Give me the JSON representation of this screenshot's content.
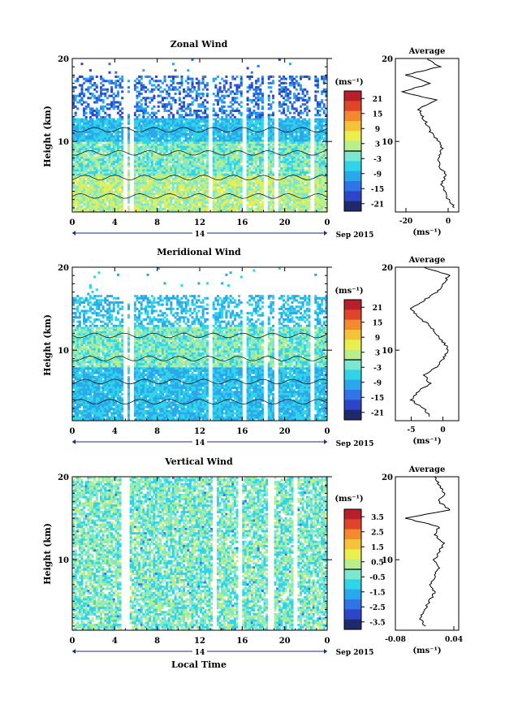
{
  "figure": {
    "xlabel": "Local Time",
    "units_label": "(ms⁻¹)"
  },
  "colormap": [
    "#1f2a6e",
    "#2c46c7",
    "#2f74e8",
    "#2aa8ec",
    "#31d3e8",
    "#7ae8d0",
    "#b8ef8c",
    "#e8ef4e",
    "#f6c23a",
    "#f38a2d",
    "#e0452a",
    "#b81f2a"
  ],
  "chart_data": [
    {
      "type": "heatmap",
      "id": "zonal",
      "title": "Zonal Wind",
      "ylabel": "Height (km)",
      "x_ticks": [
        "0",
        "4",
        "8",
        "12",
        "16",
        "20",
        "0"
      ],
      "date_label": "14",
      "date_suffix": "Sep 2015",
      "y_range": [
        1.5,
        20
      ],
      "y_ticks": [
        10,
        20
      ],
      "colorbar": {
        "units": "(ms⁻¹)",
        "ticks": [
          "21",
          "15",
          "9",
          "3",
          "-3",
          "-9",
          "-15",
          "-21"
        ],
        "range": [
          -24,
          24
        ]
      },
      "profile": {
        "title": "Average",
        "x_range": [
          -25,
          5
        ],
        "x_ticks": [
          "-20",
          "0"
        ],
        "x_units": "(ms⁻¹)",
        "y_ticks": [
          "20",
          "10"
        ],
        "height_km": [
          2,
          3,
          4,
          5,
          6,
          7,
          8,
          9,
          10,
          11,
          12,
          13,
          14,
          15,
          16,
          17,
          18,
          19,
          20
        ],
        "values": [
          3,
          0,
          -2,
          -3,
          -1,
          -4,
          -5,
          -3,
          -4,
          -8,
          -10,
          -12,
          -14,
          -6,
          -22,
          -8,
          -20,
          -4,
          -10
        ]
      }
    },
    {
      "type": "heatmap",
      "id": "meridional",
      "title": "Meridional Wind",
      "ylabel": "Height (km)",
      "x_ticks": [
        "0",
        "4",
        "8",
        "12",
        "16",
        "20",
        "0"
      ],
      "date_label": "14",
      "date_suffix": "Sep 2015",
      "y_range": [
        1.5,
        20
      ],
      "y_ticks": [
        10,
        20
      ],
      "colorbar": {
        "units": "(ms⁻¹)",
        "ticks": [
          "21",
          "15",
          "9",
          "3",
          "-3",
          "-9",
          "-15",
          "-21"
        ],
        "range": [
          -24,
          24
        ]
      },
      "profile": {
        "title": "Average",
        "x_range": [
          -7.5,
          2.5
        ],
        "x_ticks": [
          "-5",
          "0"
        ],
        "x_units": "(ms⁻¹)",
        "y_ticks": [
          "20",
          "10"
        ],
        "height_km": [
          2,
          3,
          4,
          5,
          6,
          7,
          8,
          9,
          10,
          11,
          12,
          13,
          14,
          15,
          16,
          17,
          18,
          19,
          20
        ],
        "values": [
          -2,
          -3,
          -5,
          -4,
          -2,
          -3,
          -1,
          0,
          1,
          0,
          -1,
          -2,
          -4,
          -5,
          -3,
          -1,
          0,
          1,
          -3
        ]
      }
    },
    {
      "type": "heatmap",
      "id": "vertical",
      "title": "Vertical Wind",
      "ylabel": "Height (km)",
      "x_ticks": [
        "0",
        "4",
        "8",
        "12",
        "16",
        "20",
        "0"
      ],
      "date_label": "14",
      "date_suffix": "Sep 2015",
      "y_range": [
        1.5,
        20
      ],
      "y_ticks": [
        10,
        20
      ],
      "colorbar": {
        "units": "(ms⁻¹)",
        "ticks": [
          "3.5",
          "2.5",
          "1.5",
          "0.5",
          "-0.5",
          "-1.5",
          "-2.5",
          "-3.5"
        ],
        "range": [
          -4,
          4
        ]
      },
      "profile": {
        "title": "Average",
        "x_range": [
          -0.08,
          0.05
        ],
        "x_ticks": [
          "-0.08",
          "0.04"
        ],
        "x_units": "(ms⁻¹)",
        "y_ticks": [
          "20",
          "10"
        ],
        "height_km": [
          2,
          3,
          4,
          5,
          6,
          7,
          8,
          9,
          10,
          11,
          12,
          13,
          14,
          15,
          16,
          17,
          18,
          19,
          20
        ],
        "values": [
          -0.02,
          -0.03,
          -0.02,
          -0.01,
          0.0,
          -0.01,
          0.0,
          0.01,
          0.0,
          0.01,
          0.02,
          0.0,
          0.01,
          -0.06,
          0.03,
          0.01,
          0.02,
          0.01,
          0.0
        ]
      }
    }
  ]
}
